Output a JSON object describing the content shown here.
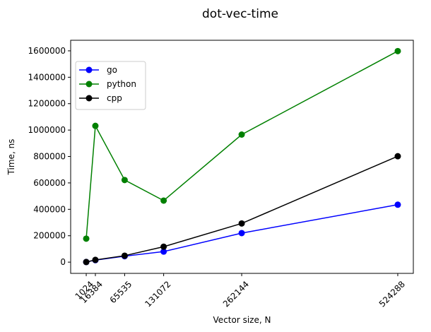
{
  "chart_data": {
    "type": "line",
    "title": "dot-vec-time",
    "xlabel": "Vector size, N",
    "ylabel": "Time, ns",
    "x": [
      1024,
      16384,
      65535,
      131072,
      262144,
      524288
    ],
    "x_tick_labels": [
      "1024",
      "16384",
      "65535",
      "131072",
      "262144",
      "524288"
    ],
    "y_ticks": [
      0,
      200000,
      400000,
      600000,
      800000,
      1000000,
      1200000,
      1400000,
      1600000
    ],
    "xlim": [
      -25133,
      550445
    ],
    "ylim": [
      -85000,
      1680000
    ],
    "grid": false,
    "legend_position": "upper-left",
    "series": [
      {
        "name": "go",
        "color": "#0000ff",
        "values": [
          1000,
          15000,
          45000,
          80000,
          220000,
          435000
        ]
      },
      {
        "name": "python",
        "color": "#008000",
        "values": [
          178000,
          1032000,
          622000,
          466000,
          966000,
          1598000
        ]
      },
      {
        "name": "cpp",
        "color": "#000000",
        "values": [
          1000,
          17000,
          49000,
          117000,
          293000,
          802000
        ]
      }
    ]
  }
}
